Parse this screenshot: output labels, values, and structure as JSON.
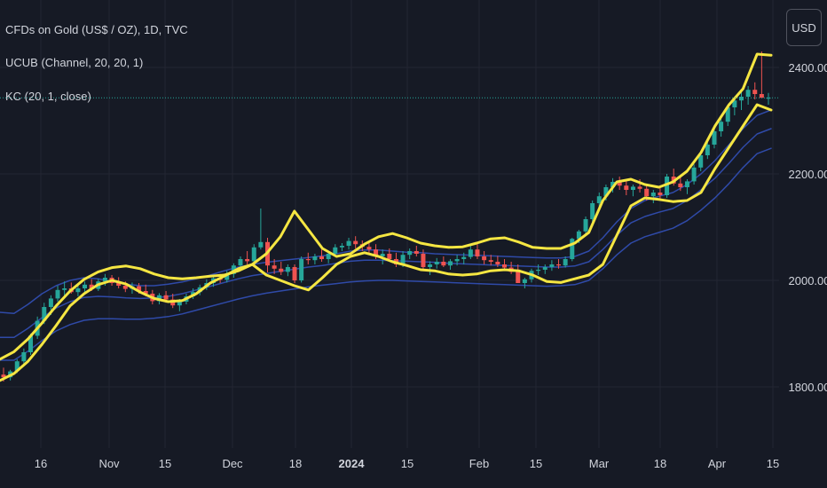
{
  "legend": {
    "symbol": "CFDs on Gold (US$ / OZ), 1D, TVC",
    "indicator1": "UCUB (Channel, 20, 20, 1)",
    "indicator2": "KC (20, 1, close)"
  },
  "currency_button": "USD",
  "colors": {
    "background": "#161a25",
    "grid": "#232632",
    "up_candle": "#26a69a",
    "down_candle": "#ef5350",
    "channel_band": "#f5e642",
    "keltner": "#2f4aa8",
    "price_line": "#26a69a"
  },
  "chart_data": {
    "type": "candlestick",
    "title": "CFDs on Gold (US$ / OZ), 1D, TVC",
    "y_axis": {
      "ticks": [
        1800,
        2000,
        2200,
        2400
      ],
      "tick_labels": [
        "1800.00",
        "2000.00",
        "2200.00",
        "2400.00"
      ],
      "range": [
        1770,
        2440
      ]
    },
    "x_axis": {
      "tick_labels": [
        "16",
        "Nov",
        "15",
        "Dec",
        "18",
        "2024",
        "15",
        "Feb",
        "15",
        "Mar",
        "18",
        "Apr",
        "15"
      ],
      "bold_labels": [
        "2024"
      ]
    },
    "current_price": 2343,
    "candles_ohlc": [
      [
        1823,
        1836,
        1810,
        1818
      ],
      [
        1818,
        1832,
        1812,
        1829
      ],
      [
        1830,
        1852,
        1826,
        1848
      ],
      [
        1848,
        1872,
        1843,
        1865
      ],
      [
        1865,
        1900,
        1860,
        1896
      ],
      [
        1896,
        1932,
        1890,
        1924
      ],
      [
        1924,
        1958,
        1918,
        1950
      ],
      [
        1950,
        1972,
        1935,
        1966
      ],
      [
        1966,
        1990,
        1960,
        1982
      ],
      [
        1982,
        1998,
        1970,
        1985
      ],
      [
        1985,
        1996,
        1975,
        1978
      ],
      [
        1978,
        1992,
        1970,
        1985
      ],
      [
        1985,
        1998,
        1978,
        1992
      ],
      [
        1992,
        2002,
        1980,
        1984
      ],
      [
        1984,
        2003,
        1980,
        1998
      ],
      [
        1998,
        2012,
        1990,
        2005
      ],
      [
        2005,
        2010,
        1990,
        1995
      ],
      [
        1995,
        2006,
        1985,
        1990
      ],
      [
        1990,
        1998,
        1978,
        1984
      ],
      [
        1984,
        1996,
        1975,
        1989
      ],
      [
        1989,
        1995,
        1975,
        1980
      ],
      [
        1980,
        1992,
        1970,
        1975
      ],
      [
        1975,
        1982,
        1955,
        1961
      ],
      [
        1961,
        1976,
        1955,
        1972
      ],
      [
        1972,
        1980,
        1958,
        1964
      ],
      [
        1964,
        1975,
        1948,
        1953
      ],
      [
        1953,
        1965,
        1942,
        1960
      ],
      [
        1960,
        1975,
        1955,
        1970
      ],
      [
        1970,
        1985,
        1965,
        1978
      ],
      [
        1978,
        1992,
        1972,
        1987
      ],
      [
        1987,
        2002,
        1982,
        1995
      ],
      [
        1995,
        2010,
        1988,
        2004
      ],
      [
        2004,
        2012,
        1995,
        2001
      ],
      [
        2001,
        2018,
        1996,
        2012
      ],
      [
        2012,
        2032,
        2005,
        2028
      ],
      [
        2028,
        2045,
        2020,
        2040
      ],
      [
        2040,
        2055,
        2030,
        2036
      ],
      [
        2036,
        2068,
        2030,
        2062
      ],
      [
        2062,
        2135,
        2058,
        2072
      ],
      [
        2072,
        2080,
        2015,
        2028
      ],
      [
        2028,
        2040,
        2012,
        2022
      ],
      [
        2022,
        2035,
        2010,
        2016
      ],
      [
        2016,
        2030,
        2008,
        2025
      ],
      [
        2025,
        2030,
        1995,
        2000
      ],
      [
        2000,
        2045,
        1996,
        2040
      ],
      [
        2040,
        2052,
        2030,
        2038
      ],
      [
        2038,
        2050,
        2030,
        2045
      ],
      [
        2045,
        2058,
        2035,
        2040
      ],
      [
        2040,
        2055,
        2032,
        2050
      ],
      [
        2050,
        2068,
        2045,
        2062
      ],
      [
        2062,
        2070,
        2055,
        2065
      ],
      [
        2065,
        2080,
        2058,
        2074
      ],
      [
        2074,
        2083,
        2060,
        2068
      ],
      [
        2068,
        2075,
        2055,
        2063
      ],
      [
        2063,
        2070,
        2050,
        2058
      ],
      [
        2058,
        2068,
        2040,
        2045
      ],
      [
        2045,
        2058,
        2030,
        2050
      ],
      [
        2050,
        2060,
        2035,
        2040
      ],
      [
        2040,
        2052,
        2025,
        2030
      ],
      [
        2030,
        2055,
        2025,
        2048
      ],
      [
        2048,
        2060,
        2040,
        2055
      ],
      [
        2055,
        2065,
        2045,
        2050
      ],
      [
        2050,
        2058,
        2020,
        2025
      ],
      [
        2025,
        2036,
        2010,
        2030
      ],
      [
        2030,
        2042,
        2022,
        2035
      ],
      [
        2035,
        2045,
        2025,
        2028
      ],
      [
        2028,
        2040,
        2020,
        2036
      ],
      [
        2036,
        2048,
        2028,
        2040
      ],
      [
        2040,
        2052,
        2030,
        2044
      ],
      [
        2044,
        2065,
        2040,
        2058
      ],
      [
        2058,
        2068,
        2040,
        2045
      ],
      [
        2045,
        2055,
        2030,
        2038
      ],
      [
        2038,
        2048,
        2028,
        2035
      ],
      [
        2035,
        2046,
        2025,
        2030
      ],
      [
        2030,
        2040,
        2018,
        2024
      ],
      [
        2024,
        2035,
        2012,
        2016
      ],
      [
        2016,
        2030,
        2005,
        1995
      ],
      [
        1995,
        2005,
        1985,
        2002
      ],
      [
        2002,
        2022,
        1996,
        2018
      ],
      [
        2018,
        2030,
        2010,
        2020
      ],
      [
        2020,
        2030,
        2012,
        2025
      ],
      [
        2025,
        2038,
        2018,
        2030
      ],
      [
        2030,
        2040,
        2022,
        2028
      ],
      [
        2028,
        2045,
        2024,
        2040
      ],
      [
        2040,
        2080,
        2036,
        2078
      ],
      [
        2078,
        2095,
        2070,
        2092
      ],
      [
        2092,
        2120,
        2088,
        2115
      ],
      [
        2115,
        2150,
        2110,
        2145
      ],
      [
        2145,
        2165,
        2135,
        2158
      ],
      [
        2158,
        2180,
        2150,
        2175
      ],
      [
        2175,
        2192,
        2165,
        2185
      ],
      [
        2185,
        2195,
        2170,
        2178
      ],
      [
        2178,
        2188,
        2160,
        2170
      ],
      [
        2170,
        2180,
        2158,
        2176
      ],
      [
        2176,
        2190,
        2165,
        2172
      ],
      [
        2172,
        2180,
        2150,
        2158
      ],
      [
        2158,
        2170,
        2145,
        2165
      ],
      [
        2165,
        2175,
        2150,
        2160
      ],
      [
        2160,
        2200,
        2155,
        2195
      ],
      [
        2195,
        2210,
        2178,
        2182
      ],
      [
        2182,
        2196,
        2168,
        2175
      ],
      [
        2175,
        2190,
        2162,
        2186
      ],
      [
        2186,
        2218,
        2180,
        2212
      ],
      [
        2212,
        2240,
        2205,
        2235
      ],
      [
        2235,
        2260,
        2228,
        2255
      ],
      [
        2255,
        2285,
        2248,
        2280
      ],
      [
        2280,
        2305,
        2270,
        2298
      ],
      [
        2298,
        2330,
        2290,
        2325
      ],
      [
        2325,
        2345,
        2310,
        2338
      ],
      [
        2338,
        2355,
        2320,
        2345
      ],
      [
        2345,
        2365,
        2330,
        2358
      ],
      [
        2358,
        2372,
        2340,
        2350
      ],
      [
        2350,
        2430,
        2345,
        2343
      ],
      [
        2343,
        2352,
        2330,
        2343
      ]
    ],
    "channel_upper": [
      1852,
      1866,
      1890,
      1920,
      1952,
      1980,
      2002,
      2016,
      2024,
      2027,
      2022,
      2012,
      2005,
      2003,
      2005,
      2008,
      2010,
      2018,
      2030,
      2050,
      2082,
      2130,
      2095,
      2060,
      2045,
      2050,
      2068,
      2082,
      2088,
      2080,
      2070,
      2065,
      2062,
      2063,
      2070,
      2078,
      2080,
      2072,
      2062,
      2060,
      2060,
      2070,
      2090,
      2150,
      2185,
      2190,
      2180,
      2175,
      2185,
      2205,
      2240,
      2290,
      2330,
      2360,
      2425,
      2423
    ],
    "channel_lower": [
      1812,
      1825,
      1848,
      1880,
      1915,
      1952,
      1975,
      1992,
      2000,
      1993,
      1978,
      1966,
      1960,
      1962,
      1975,
      1995,
      2008,
      2022,
      2030,
      2010,
      2000,
      1990,
      1982,
      2005,
      2030,
      2045,
      2052,
      2045,
      2035,
      2028,
      2020,
      2018,
      2012,
      2010,
      2012,
      2018,
      2020,
      2018,
      2010,
      1998,
      1996,
      2003,
      2010,
      2030,
      2085,
      2140,
      2155,
      2152,
      2148,
      2150,
      2165,
      2210,
      2250,
      2290,
      2330,
      2320
    ],
    "keltner_upper": [
      1940,
      1938,
      1955,
      1975,
      1990,
      2000,
      2005,
      2003,
      1998,
      1993,
      1990,
      1990,
      1993,
      1997,
      2003,
      2010,
      2018,
      2025,
      2030,
      2034,
      2037,
      2040,
      2043,
      2046,
      2050,
      2055,
      2057,
      2057,
      2055,
      2053,
      2052,
      2050,
      2049,
      2048,
      2047,
      2046,
      2045,
      2044,
      2043,
      2042,
      2042,
      2045,
      2055,
      2080,
      2110,
      2135,
      2150,
      2158,
      2165,
      2180,
      2200,
      2225,
      2255,
      2285,
      2310,
      2320
    ],
    "keltner_mid": [
      1893,
      1893,
      1910,
      1930,
      1948,
      1960,
      1968,
      1970,
      1969,
      1967,
      1966,
      1967,
      1970,
      1975,
      1982,
      1989,
      1996,
      2003,
      2009,
      2013,
      2017,
      2021,
      2025,
      2028,
      2032,
      2036,
      2038,
      2038,
      2037,
      2036,
      2035,
      2034,
      2032,
      2031,
      2030,
      2029,
      2028,
      2027,
      2026,
      2025,
      2025,
      2027,
      2035,
      2058,
      2085,
      2108,
      2120,
      2128,
      2135,
      2150,
      2170,
      2192,
      2220,
      2250,
      2275,
      2285
    ],
    "keltner_lower": [
      1850,
      1850,
      1867,
      1887,
      1905,
      1917,
      1925,
      1928,
      1928,
      1927,
      1927,
      1929,
      1932,
      1937,
      1944,
      1951,
      1958,
      1965,
      1971,
      1976,
      1980,
      1984,
      1988,
      1991,
      1994,
      1997,
      1999,
      2000,
      2000,
      1999,
      1998,
      1997,
      1996,
      1995,
      1994,
      1993,
      1992,
      1991,
      1990,
      1989,
      1990,
      1992,
      2000,
      2022,
      2048,
      2070,
      2082,
      2090,
      2098,
      2112,
      2132,
      2155,
      2182,
      2212,
      2238,
      2248
    ]
  }
}
